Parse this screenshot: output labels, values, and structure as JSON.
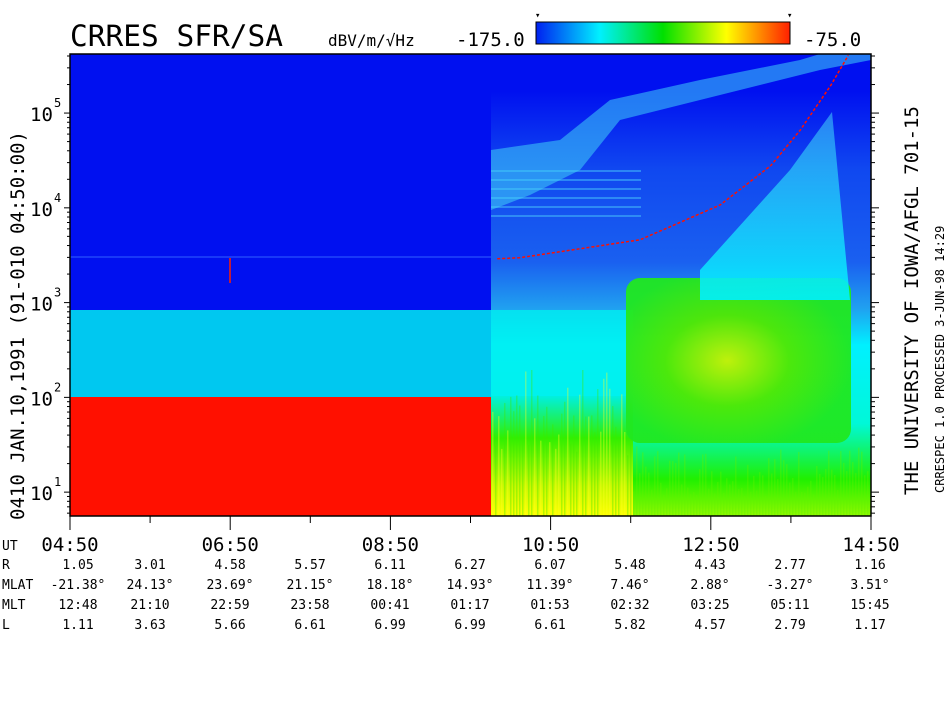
{
  "header": {
    "title": "CRRES SFR/SA",
    "units": "dBV/m/√Hz",
    "colorbar_min": "-175.0",
    "colorbar_max": "-75.0",
    "colorbar_colors": [
      "#0020f0",
      "#00f0ff",
      "#00e000",
      "#ffff00",
      "#ff2000"
    ]
  },
  "left_label": "0410   JAN.10,1991   (91-010 04:50:00)",
  "right_label_1": "THE UNIVERSITY OF IOWA/AFGL 701-15",
  "right_label_2": "CRRESPEC 1.0   PROCESSED   3-JUN-98   14:29",
  "chart_data": {
    "type": "heatmap",
    "title": "CRRES SFR/SA",
    "colorbar_label": "dBV/m/√Hz",
    "colorbar_range": [
      -175.0,
      -75.0
    ],
    "y_scale": "log",
    "ylim": [
      5.6,
      420000
    ],
    "y_ticks": [
      {
        "value": 10,
        "label": "10",
        "exp": "1"
      },
      {
        "value": 100,
        "label": "10",
        "exp": "2"
      },
      {
        "value": 1000,
        "label": "10",
        "exp": "3"
      },
      {
        "value": 10000,
        "label": "10",
        "exp": "4"
      },
      {
        "value": 100000,
        "label": "10",
        "exp": "5"
      }
    ],
    "xlim": [
      "04:50",
      "14:50"
    ],
    "x_ticks": [
      "04:50",
      "06:50",
      "08:50",
      "10:50",
      "12:50",
      "14:50"
    ],
    "fce_trace": [
      {
        "time": "10:10",
        "freq": 2900
      },
      {
        "time": "10:27",
        "freq": 2980
      },
      {
        "time": "11:57",
        "freq": 4600
      },
      {
        "time": "12:57",
        "freq": 10700
      },
      {
        "time": "13:35",
        "freq": 28000
      },
      {
        "time": "13:57",
        "freq": 66000
      },
      {
        "time": "14:20",
        "freq": 197000
      },
      {
        "time": "14:33",
        "freq": 407000
      }
    ]
  },
  "ephemeris": {
    "ut_label": "UT",
    "rows": [
      {
        "label": "R",
        "values": [
          "1.05",
          "3.01",
          "4.58",
          "5.57",
          "6.11",
          "6.27",
          "6.07",
          "5.48",
          "4.43",
          "2.77",
          "1.16"
        ]
      },
      {
        "label": "MLAT",
        "values": [
          "-21.38°",
          "24.13°",
          "23.69°",
          "21.15°",
          "18.18°",
          "14.93°",
          "11.39°",
          "7.46°",
          "2.88°",
          "-3.27°",
          "3.51°"
        ]
      },
      {
        "label": "MLT",
        "values": [
          "12:48",
          "21:10",
          "22:59",
          "23:58",
          "00:41",
          "01:17",
          "01:53",
          "02:32",
          "03:25",
          "05:11",
          "15:45"
        ]
      },
      {
        "label": "L",
        "values": [
          "1.11",
          "3.63",
          "5.66",
          "6.61",
          "6.99",
          "6.99",
          "6.61",
          "5.82",
          "4.57",
          "2.79",
          "1.17"
        ]
      }
    ]
  }
}
